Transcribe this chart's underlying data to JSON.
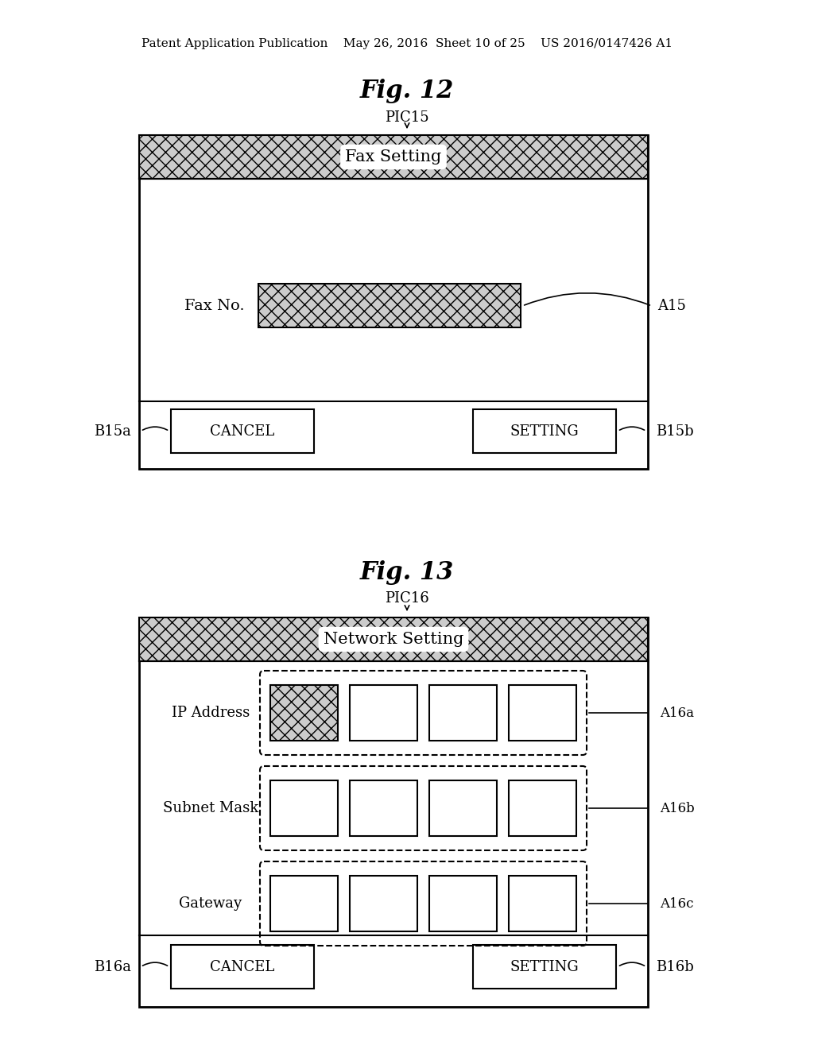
{
  "bg_color": "#ffffff",
  "header_text": "Patent Application Publication    May 26, 2016  Sheet 10 of 25    US 2016/0147426 A1",
  "fig12": {
    "title": "Fig. 12",
    "pic_label": "PIC15",
    "screen_title": "Fax Setting",
    "field_label": "Fax No.",
    "field_ref": "A15",
    "btn_left_label": "CANCEL",
    "btn_left_ref": "B15a",
    "btn_right_label": "SETTING",
    "btn_right_ref": "B15b"
  },
  "fig13": {
    "title": "Fig. 13",
    "pic_label": "PIC16",
    "screen_title": "Network Setting",
    "rows": [
      {
        "label": "IP Address",
        "ref": "A16a",
        "first_hatched": true
      },
      {
        "label": "Subnet Mask",
        "ref": "A16b",
        "first_hatched": false
      },
      {
        "label": "Gateway",
        "ref": "A16c",
        "first_hatched": false
      }
    ],
    "btn_left_label": "CANCEL",
    "btn_left_ref": "B16a",
    "btn_right_label": "SETTING",
    "btn_right_ref": "B16b"
  }
}
